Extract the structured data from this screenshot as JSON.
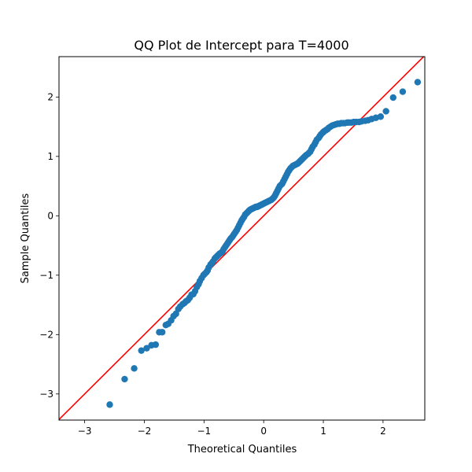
{
  "chart_data": {
    "type": "scatter",
    "title": "QQ Plot de Intercept para T=4000",
    "xlabel": "Theoretical Quantiles",
    "ylabel": "Sample Quantiles",
    "xlim": [
      -3.43,
      2.7
    ],
    "ylim": [
      -3.44,
      2.68
    ],
    "xticks": [
      -3,
      -2,
      -1,
      0,
      1,
      2
    ],
    "yticks": [
      -3,
      -2,
      -1,
      0,
      1,
      2
    ],
    "xtick_labels": [
      "−3",
      "−2",
      "−1",
      "0",
      "1",
      "2"
    ],
    "ytick_labels": [
      "−3",
      "−2",
      "−1",
      "0",
      "1",
      "2"
    ],
    "grid": false,
    "legend": "none",
    "marker_color": "#1f77b4",
    "reference_line": {
      "type": "45-degree",
      "color": "#ff0000"
    },
    "series": [
      {
        "x": [
          -2.58,
          -2.33,
          -2.17,
          -2.05,
          -1.96,
          -1.88,
          -1.81,
          -1.75,
          -1.7,
          -1.64,
          -1.6,
          -1.55,
          -1.51,
          -1.47,
          -1.43,
          -1.4,
          -1.36,
          -1.33,
          -1.3,
          -1.27,
          -1.24,
          -1.21,
          -1.18,
          -1.15,
          -1.12,
          -1.09,
          -1.07,
          -1.04,
          -1.01,
          -0.99,
          -0.96,
          -0.94,
          -0.92,
          -0.89,
          -0.87,
          -0.85,
          -0.82,
          -0.8,
          -0.78,
          -0.76,
          -0.74,
          -0.71,
          -0.69,
          -0.67,
          -0.65,
          -0.63,
          -0.61,
          -0.59,
          -0.57,
          -0.55,
          -0.53,
          -0.51,
          -0.49,
          -0.47,
          -0.45,
          -0.43,
          -0.41,
          -0.39,
          -0.37,
          -0.35,
          -0.33,
          -0.31,
          -0.29,
          -0.27,
          -0.25,
          -0.23,
          -0.21,
          -0.19,
          -0.17,
          -0.15,
          -0.13,
          -0.11,
          -0.09,
          -0.07,
          -0.05,
          -0.03,
          -0.01,
          0.01,
          0.03,
          0.05,
          0.07,
          0.09,
          0.11,
          0.13,
          0.15,
          0.17,
          0.19,
          0.21,
          0.23,
          0.25,
          0.27,
          0.29,
          0.31,
          0.33,
          0.35,
          0.37,
          0.39,
          0.41,
          0.43,
          0.45,
          0.47,
          0.49,
          0.51,
          0.53,
          0.55,
          0.57,
          0.59,
          0.61,
          0.63,
          0.65,
          0.67,
          0.69,
          0.71,
          0.74,
          0.76,
          0.78,
          0.8,
          0.82,
          0.85,
          0.87,
          0.89,
          0.92,
          0.94,
          0.96,
          0.99,
          1.01,
          1.04,
          1.07,
          1.09,
          1.12,
          1.15,
          1.18,
          1.21,
          1.24,
          1.27,
          1.3,
          1.33,
          1.36,
          1.4,
          1.43,
          1.47,
          1.51,
          1.55,
          1.6,
          1.64,
          1.7,
          1.75,
          1.81,
          1.88,
          1.96,
          2.05,
          2.17,
          2.33,
          2.58
        ],
        "y": [
          -3.18,
          -2.75,
          -2.57,
          -2.27,
          -2.23,
          -2.18,
          -2.17,
          -1.96,
          -1.96,
          -1.84,
          -1.82,
          -1.76,
          -1.69,
          -1.65,
          -1.57,
          -1.53,
          -1.49,
          -1.47,
          -1.44,
          -1.42,
          -1.38,
          -1.33,
          -1.32,
          -1.27,
          -1.2,
          -1.15,
          -1.1,
          -1.05,
          -1.0,
          -0.98,
          -0.95,
          -0.92,
          -0.87,
          -0.82,
          -0.8,
          -0.77,
          -0.72,
          -0.7,
          -0.68,
          -0.66,
          -0.64,
          -0.62,
          -0.6,
          -0.56,
          -0.53,
          -0.5,
          -0.47,
          -0.44,
          -0.41,
          -0.38,
          -0.36,
          -0.33,
          -0.3,
          -0.27,
          -0.24,
          -0.2,
          -0.16,
          -0.12,
          -0.08,
          -0.05,
          -0.02,
          0.02,
          0.04,
          0.06,
          0.08,
          0.1,
          0.11,
          0.12,
          0.13,
          0.14,
          0.15,
          0.15,
          0.16,
          0.17,
          0.18,
          0.19,
          0.2,
          0.21,
          0.22,
          0.23,
          0.24,
          0.25,
          0.26,
          0.27,
          0.29,
          0.31,
          0.34,
          0.38,
          0.42,
          0.46,
          0.5,
          0.52,
          0.54,
          0.58,
          0.62,
          0.66,
          0.7,
          0.74,
          0.77,
          0.8,
          0.82,
          0.84,
          0.85,
          0.86,
          0.87,
          0.88,
          0.9,
          0.92,
          0.94,
          0.96,
          0.98,
          1.0,
          1.02,
          1.04,
          1.06,
          1.08,
          1.12,
          1.16,
          1.2,
          1.24,
          1.28,
          1.31,
          1.34,
          1.37,
          1.4,
          1.42,
          1.44,
          1.46,
          1.48,
          1.5,
          1.52,
          1.53,
          1.54,
          1.55,
          1.56,
          1.56,
          1.57,
          1.57,
          1.58,
          1.58,
          1.59,
          1.61,
          1.63,
          1.65,
          1.67,
          1.76,
          1.99,
          2.09,
          2.25,
          1.55,
          1.56,
          1.57,
          1.58,
          1.6
        ],
        "x_extra": [],
        "y_extra": []
      }
    ]
  }
}
